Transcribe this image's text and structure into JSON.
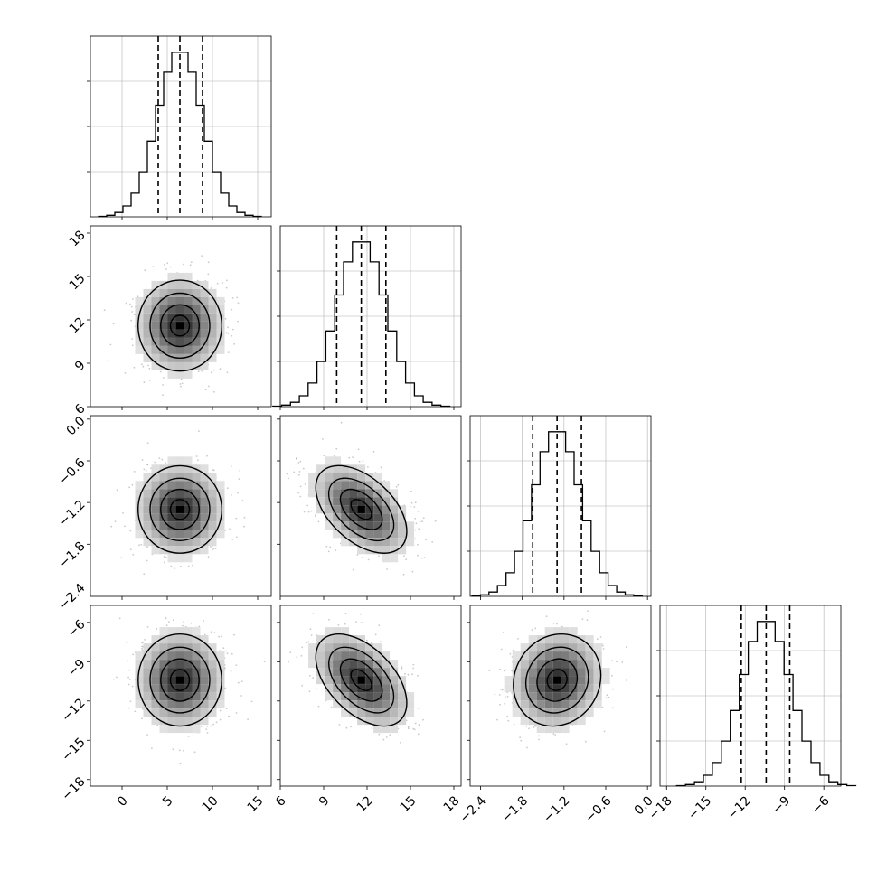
{
  "chart_data": {
    "type": "corner",
    "parameters": [
      {
        "index": 0,
        "range": [
          -3.5,
          16.5
        ],
        "ticks": [
          0,
          5,
          10,
          15
        ],
        "tick_labels": [
          "0",
          "5",
          "10",
          "15"
        ]
      },
      {
        "index": 1,
        "range": [
          6.0,
          18.5
        ],
        "ticks": [
          6,
          9,
          12,
          15,
          18
        ],
        "tick_labels": [
          "6",
          "9",
          "12",
          "15",
          "18"
        ]
      },
      {
        "index": 2,
        "range": [
          -2.55,
          0.05
        ],
        "ticks": [
          -2.4,
          -1.8,
          -1.2,
          -0.6,
          0.0
        ],
        "tick_labels": [
          "−2.4",
          "−1.8",
          "−1.2",
          "−0.6",
          "0.0"
        ]
      },
      {
        "index": 3,
        "range": [
          -18.5,
          -4.7
        ],
        "ticks": [
          -18,
          -15,
          -12,
          -9,
          -6
        ],
        "tick_labels": [
          "−18",
          "−15",
          "−12",
          "−9",
          "−6"
        ]
      }
    ],
    "marginals": [
      {
        "param": 0,
        "bins": 20,
        "mean": 6.4,
        "sd": 2.5,
        "quantiles": [
          4.0,
          6.4,
          8.9
        ]
      },
      {
        "param": 1,
        "bins": 20,
        "mean": 11.6,
        "sd": 1.7,
        "quantiles": [
          9.9,
          11.6,
          13.3
        ]
      },
      {
        "param": 2,
        "bins": 20,
        "mean": -1.3,
        "sd": 0.34,
        "quantiles": [
          -1.65,
          -1.3,
          -0.95
        ]
      },
      {
        "param": 3,
        "bins": 20,
        "mean": -10.4,
        "sd": 1.9,
        "quantiles": [
          -12.3,
          -10.4,
          -8.6
        ]
      }
    ],
    "correlations": [
      {
        "x": 0,
        "y": 1,
        "rho": 0.0
      },
      {
        "x": 0,
        "y": 2,
        "rho": 0.0
      },
      {
        "x": 1,
        "y": 2,
        "rho": -0.5
      },
      {
        "x": 0,
        "y": 3,
        "rho": 0.0
      },
      {
        "x": 1,
        "y": 3,
        "rho": -0.5
      },
      {
        "x": 2,
        "y": 3,
        "rho": 0.1
      }
    ],
    "contour_levels_sigma": [
      0.5,
      1.0,
      1.5,
      2.0
    ],
    "grid": true,
    "colors": {
      "line": "#000000",
      "points": "#8a8a8a",
      "grid": "#b0b0b0"
    }
  }
}
